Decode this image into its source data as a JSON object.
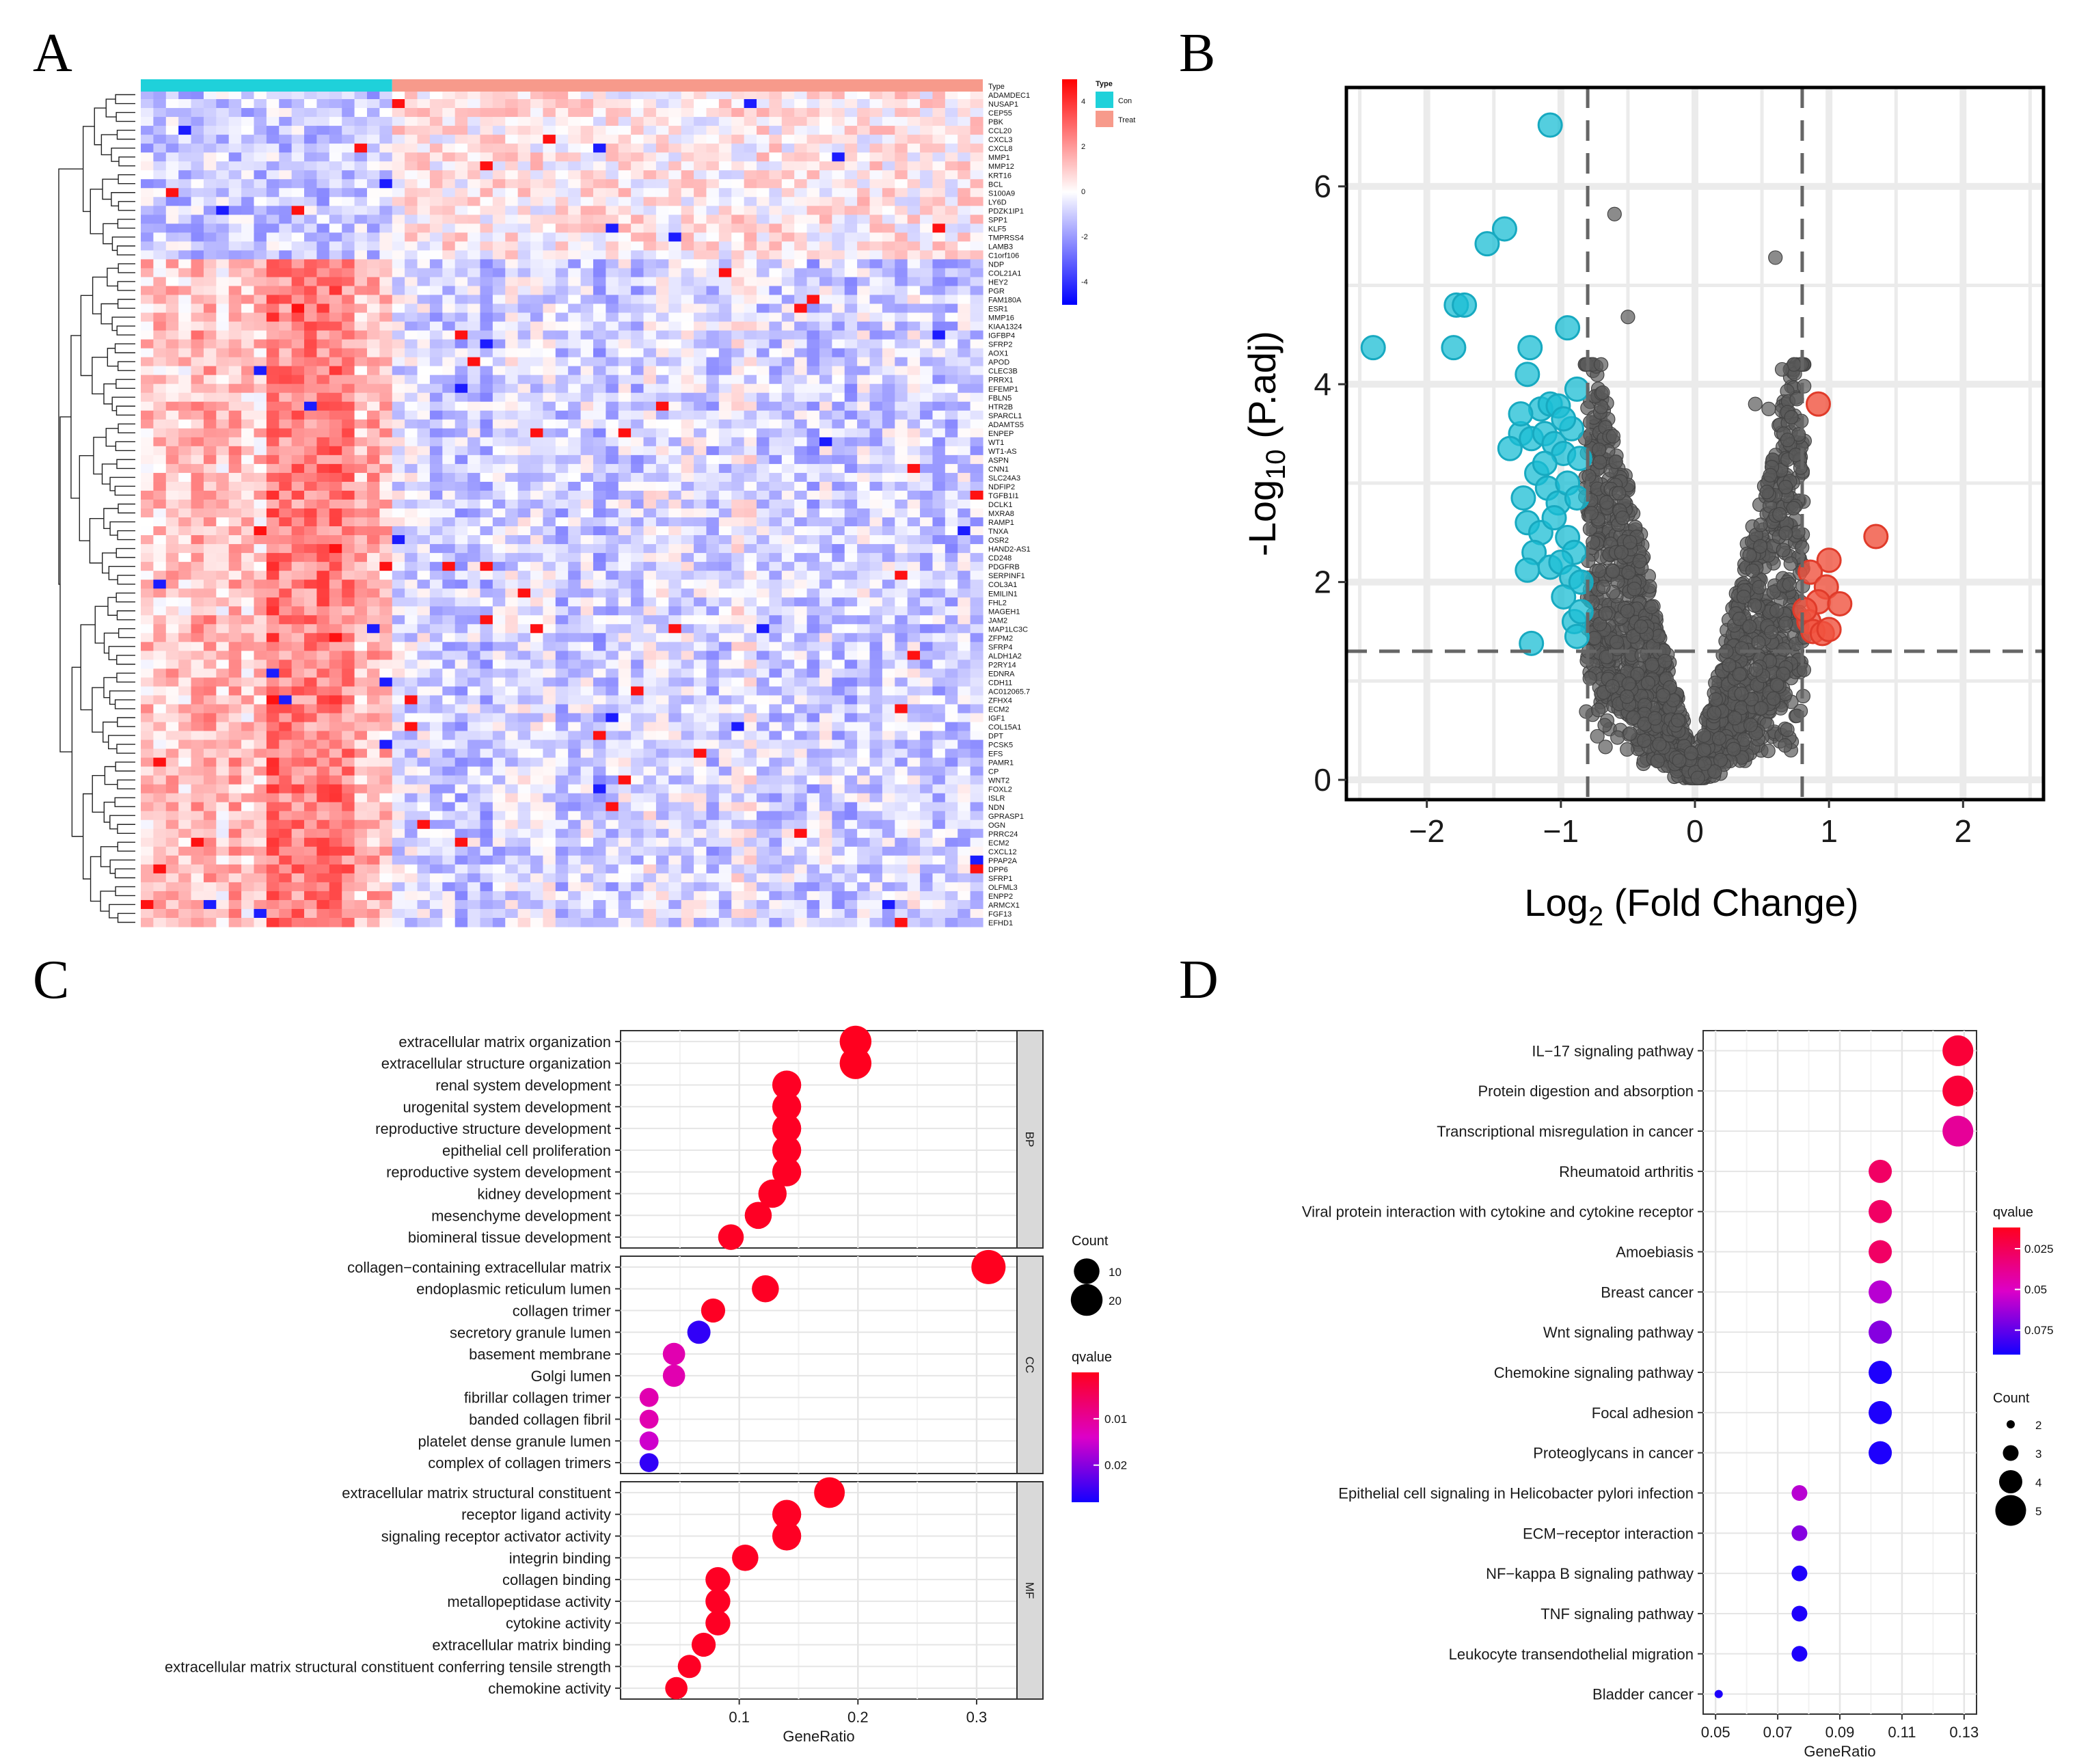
{
  "figure": {
    "panel_letters": [
      "A",
      "B",
      "C",
      "D"
    ]
  },
  "chart_data": [
    {
      "panel": "A",
      "type": "heatmap",
      "title": "",
      "annotation_label": "Type",
      "groups": [
        {
          "name": "Con",
          "color": "#1FD1DA",
          "n_samples": 20
        },
        {
          "name": "Treat",
          "color": "#F79A8B",
          "n_samples": 47
        }
      ],
      "genes": [
        "ADAMDEC1",
        "NUSAP1",
        "CEP55",
        "PBK",
        "CCL20",
        "CXCL3",
        "CXCL8",
        "MMP1",
        "MMP12",
        "KRT16",
        "BCL",
        "S100A9",
        "LY6D",
        "PDZK1IP1",
        "SPP1",
        "KLF5",
        "TMPRSS4",
        "LAMB3",
        "C1orf106",
        "NDP",
        "COL21A1",
        "HEY2",
        "PGR",
        "FAM180A",
        "ESR1",
        "MMP16",
        "KIAA1324",
        "IGFBP4",
        "SFRP2",
        "AOX1",
        "APOD",
        "CLEC3B",
        "PRRX1",
        "EFEMP1",
        "FBLN5",
        "HTR2B",
        "SPARCL1",
        "ADAMTS5",
        "ENPEP",
        "WT1",
        "WT1-AS",
        "ASPN",
        "CNN1",
        "SLC24A3",
        "NDFIP2",
        "TGFB1I1",
        "DCLK1",
        "MXRA8",
        "RAMP1",
        "TNXA",
        "OSR2",
        "HAND2-AS1",
        "CD248",
        "PDGFRB",
        "SERPINF1",
        "COL3A1",
        "EMILIN1",
        "FHL2",
        "MAGEH1",
        "JAM2",
        "MAP1LC3C",
        "ZFPM2",
        "SFRP4",
        "ALDH1A2",
        "P2RY14",
        "EDNRA",
        "CDH11",
        "AC012065.7",
        "ZFHX4",
        "ECM2",
        "IGF1",
        "COL15A1",
        "DPT",
        "PCSK5",
        "EFS",
        "PAMR1",
        "CP",
        "WNT2",
        "FOXL2",
        "ISLR",
        "NDN",
        "GPRASP1",
        "OGN",
        "PRRC24",
        "ECM2b",
        "CXCL12",
        "PPAP2A",
        "DPP6",
        "SFRP1",
        "OLFML3",
        "ENPP2",
        "ARMCX1",
        "FGF13",
        "EFHD1"
      ],
      "legend": {
        "ticks": [
          4,
          2,
          0,
          -2,
          -4
        ],
        "colors": [
          "#FF0000",
          "#FFFFFF",
          "#0000FF"
        ]
      }
    },
    {
      "panel": "B",
      "type": "scatter",
      "title": "",
      "xlabel_main": "Log",
      "xlabel_sub": "2",
      "xlabel_rest": " (Fold Change)",
      "ylabel_main": "-Log",
      "ylabel_sub": "10",
      "ylabel_rest": " (P.adj)",
      "xlim": [
        -2.6,
        2.6
      ],
      "ylim": [
        -0.2,
        7.0
      ],
      "xticks": [
        -2,
        -1,
        0,
        1,
        2
      ],
      "yticks": [
        0,
        2,
        4,
        6
      ],
      "thresholds": {
        "log2fc": 0.8,
        "padj_log10": 1.3
      },
      "colors": {
        "down": "#1BBED4",
        "up": "#F0533E",
        "ns": "#5A5A5A"
      },
      "down_points": [
        [
          -2.4,
          4.37
        ],
        [
          -1.8,
          4.37
        ],
        [
          -1.78,
          4.8
        ],
        [
          -1.72,
          4.8
        ],
        [
          -1.55,
          5.42
        ],
        [
          -1.42,
          5.57
        ],
        [
          -1.23,
          4.37
        ],
        [
          -1.25,
          4.1
        ],
        [
          -1.08,
          6.62
        ],
        [
          -0.95,
          4.57
        ],
        [
          -1.15,
          3.75
        ],
        [
          -1.08,
          3.8
        ],
        [
          -1.02,
          3.78
        ],
        [
          -0.88,
          3.95
        ],
        [
          -1.3,
          3.5
        ],
        [
          -1.38,
          3.35
        ],
        [
          -1.22,
          3.45
        ],
        [
          -1.12,
          3.5
        ],
        [
          -1.05,
          3.4
        ],
        [
          -0.98,
          3.3
        ],
        [
          -0.92,
          3.55
        ],
        [
          -1.18,
          3.1
        ],
        [
          -1.1,
          2.95
        ],
        [
          -1.02,
          2.8
        ],
        [
          -0.95,
          3.0
        ],
        [
          -0.88,
          2.85
        ],
        [
          -1.25,
          2.6
        ],
        [
          -1.15,
          2.5
        ],
        [
          -1.05,
          2.65
        ],
        [
          -0.95,
          2.45
        ],
        [
          -0.9,
          2.3
        ],
        [
          -1.2,
          2.3
        ],
        [
          -1.08,
          2.15
        ],
        [
          -1.0,
          2.2
        ],
        [
          -0.92,
          2.05
        ],
        [
          -1.25,
          2.12
        ],
        [
          -0.85,
          2.0
        ],
        [
          -0.98,
          1.85
        ],
        [
          -0.9,
          1.6
        ],
        [
          -0.88,
          1.45
        ],
        [
          -1.22,
          1.38
        ],
        [
          -0.85,
          1.7
        ],
        [
          -1.12,
          3.2
        ],
        [
          -0.98,
          3.65
        ],
        [
          -0.86,
          3.25
        ],
        [
          -1.3,
          3.7
        ],
        [
          -1.28,
          2.85
        ]
      ],
      "up_points": [
        [
          1.35,
          2.46
        ],
        [
          0.92,
          3.8
        ],
        [
          1.0,
          2.22
        ],
        [
          0.86,
          2.1
        ],
        [
          0.98,
          1.95
        ],
        [
          0.92,
          1.8
        ],
        [
          1.08,
          1.78
        ],
        [
          0.85,
          1.6
        ],
        [
          0.88,
          1.5
        ],
        [
          0.95,
          1.48
        ],
        [
          0.82,
          1.72
        ],
        [
          1.0,
          1.52
        ]
      ],
      "ns_points_seed": 7
    },
    {
      "panel": "C",
      "type": "scatter",
      "title": "",
      "xlabel": "GeneRatio",
      "xlim": [
        0.0,
        0.334
      ],
      "xticks": [
        0.1,
        0.2,
        0.3
      ],
      "facets": [
        "BP",
        "CC",
        "MF"
      ],
      "terms": {
        "BP": [
          {
            "term": "extracellular matrix organization",
            "ratio": 0.198,
            "count": 20,
            "q": 0.0001
          },
          {
            "term": "extracellular structure organization",
            "ratio": 0.198,
            "count": 20,
            "q": 0.0001
          },
          {
            "term": "renal system development",
            "ratio": 0.14,
            "count": 15,
            "q": 0.0005
          },
          {
            "term": "urogenital system development",
            "ratio": 0.14,
            "count": 15,
            "q": 0.0005
          },
          {
            "term": "reproductive structure development",
            "ratio": 0.14,
            "count": 15,
            "q": 0.0005
          },
          {
            "term": "epithelial cell proliferation",
            "ratio": 0.14,
            "count": 15,
            "q": 0.0005
          },
          {
            "term": "reproductive system development",
            "ratio": 0.14,
            "count": 15,
            "q": 0.0005
          },
          {
            "term": "kidney development",
            "ratio": 0.128,
            "count": 14,
            "q": 0.0005
          },
          {
            "term": "mesenchyme development",
            "ratio": 0.116,
            "count": 12,
            "q": 0.0005
          },
          {
            "term": "biomineral tissue development",
            "ratio": 0.093,
            "count": 10,
            "q": 0.0005
          }
        ],
        "CC": [
          {
            "term": "collagen−containing extracellular matrix",
            "ratio": 0.31,
            "count": 25,
            "q": 0.0001
          },
          {
            "term": "endoplasmic reticulum lumen",
            "ratio": 0.122,
            "count": 12,
            "q": 0.0005
          },
          {
            "term": "collagen trimer",
            "ratio": 0.078,
            "count": 8,
            "q": 0.0005
          },
          {
            "term": "secretory granule lumen",
            "ratio": 0.066,
            "count": 7,
            "q": 0.026
          },
          {
            "term": "basement membrane",
            "ratio": 0.045,
            "count": 6,
            "q": 0.012
          },
          {
            "term": "Golgi lumen",
            "ratio": 0.045,
            "count": 6,
            "q": 0.012
          },
          {
            "term": "fibrillar collagen trimer",
            "ratio": 0.024,
            "count": 3,
            "q": 0.012
          },
          {
            "term": "banded collagen fibril",
            "ratio": 0.024,
            "count": 3,
            "q": 0.012
          },
          {
            "term": "platelet dense granule lumen",
            "ratio": 0.024,
            "count": 3,
            "q": 0.015
          },
          {
            "term": "complex of collagen trimers",
            "ratio": 0.024,
            "count": 3,
            "q": 0.026
          }
        ],
        "MF": [
          {
            "term": "extracellular matrix structural constituent",
            "ratio": 0.176,
            "count": 18,
            "q": 0.0001
          },
          {
            "term": "receptor ligand activity",
            "ratio": 0.14,
            "count": 15,
            "q": 0.0005
          },
          {
            "term": "signaling receptor activator activity",
            "ratio": 0.14,
            "count": 15,
            "q": 0.0005
          },
          {
            "term": "integrin binding",
            "ratio": 0.105,
            "count": 11,
            "q": 0.0005
          },
          {
            "term": "collagen binding",
            "ratio": 0.082,
            "count": 9,
            "q": 0.0005
          },
          {
            "term": "metallopeptidase activity",
            "ratio": 0.082,
            "count": 9,
            "q": 0.0005
          },
          {
            "term": "cytokine activity",
            "ratio": 0.082,
            "count": 9,
            "q": 0.0005
          },
          {
            "term": "extracellular matrix binding",
            "ratio": 0.07,
            "count": 8,
            "q": 0.0005
          },
          {
            "term": "extracellular matrix structural constituent conferring tensile strength",
            "ratio": 0.058,
            "count": 7,
            "q": 0.0005
          },
          {
            "term": "chemokine activity",
            "ratio": 0.047,
            "count": 6,
            "q": 0.0005
          }
        ]
      },
      "legend_count": {
        "title": "Count",
        "values": [
          10,
          20
        ]
      },
      "legend_q": {
        "title": "qvalue",
        "ticks": [
          0.01,
          0.02
        ],
        "range": [
          0.0,
          0.028
        ]
      }
    },
    {
      "panel": "D",
      "type": "scatter",
      "title": "",
      "xlabel": "GeneRatio",
      "xlim": [
        0.046,
        0.134
      ],
      "xticks": [
        0.05,
        0.07,
        0.09,
        0.11,
        0.13
      ],
      "terms": [
        {
          "term": "IL−17 signaling pathway",
          "ratio": 0.128,
          "count": 5,
          "q": 0.018
        },
        {
          "term": "Protein digestion and absorption",
          "ratio": 0.128,
          "count": 5,
          "q": 0.018
        },
        {
          "term": "Transcriptional misregulation in cancer",
          "ratio": 0.128,
          "count": 5,
          "q": 0.04
        },
        {
          "term": "Rheumatoid arthritis",
          "ratio": 0.103,
          "count": 4,
          "q": 0.028
        },
        {
          "term": "Viral protein interaction with cytokine and cytokine receptor",
          "ratio": 0.103,
          "count": 4,
          "q": 0.028
        },
        {
          "term": "Amoebiasis",
          "ratio": 0.103,
          "count": 4,
          "q": 0.028
        },
        {
          "term": "Breast cancer",
          "ratio": 0.103,
          "count": 4,
          "q": 0.058
        },
        {
          "term": "Wnt signaling pathway",
          "ratio": 0.103,
          "count": 4,
          "q": 0.068
        },
        {
          "term": "Chemokine signaling pathway",
          "ratio": 0.103,
          "count": 4,
          "q": 0.088
        },
        {
          "term": "Focal adhesion",
          "ratio": 0.103,
          "count": 4,
          "q": 0.088
        },
        {
          "term": "Proteoglycans in cancer",
          "ratio": 0.103,
          "count": 4,
          "q": 0.088
        },
        {
          "term": "Epithelial cell signaling in Helicobacter pylori infection",
          "ratio": 0.077,
          "count": 3,
          "q": 0.058
        },
        {
          "term": "ECM−receptor interaction",
          "ratio": 0.077,
          "count": 3,
          "q": 0.068
        },
        {
          "term": "NF−kappa B signaling pathway",
          "ratio": 0.077,
          "count": 3,
          "q": 0.088
        },
        {
          "term": "TNF signaling pathway",
          "ratio": 0.077,
          "count": 3,
          "q": 0.088
        },
        {
          "term": "Leukocyte transendothelial migration",
          "ratio": 0.077,
          "count": 3,
          "q": 0.088
        },
        {
          "term": "Bladder cancer",
          "ratio": 0.051,
          "count": 2,
          "q": 0.088
        }
      ],
      "legend_q": {
        "title": "qvalue",
        "ticks": [
          0.025,
          0.05,
          0.075
        ],
        "range": [
          0.012,
          0.09
        ]
      },
      "legend_count": {
        "title": "Count",
        "values": [
          2,
          3,
          4,
          5
        ]
      }
    }
  ]
}
